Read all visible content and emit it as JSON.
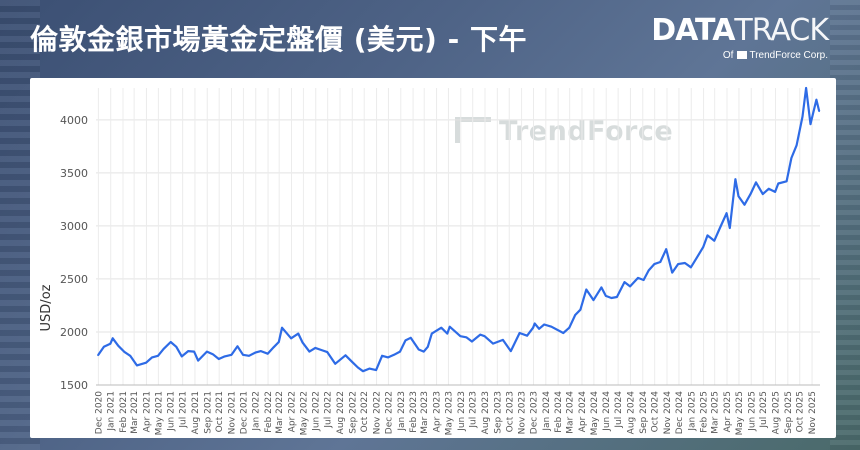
{
  "header": {
    "title": "倫敦金銀市場黃金定盤價 (美元) - 下午",
    "brand_bold": "DATA",
    "brand_light": "TRACK",
    "brand_sub_prefix": "Of",
    "brand_sub_name": "TrendForce Corp."
  },
  "watermark": "TrendForce",
  "chart_data": {
    "type": "line",
    "title": "倫敦金銀市場黃金定盤價 (美元) - 下午",
    "ylabel": "USD/oz",
    "xlabel": "",
    "ylim": [
      1500,
      4300
    ],
    "yticks": [
      1500,
      2000,
      2500,
      3000,
      3500,
      4000
    ],
    "grid": true,
    "line_color": "#2e6be6",
    "x_tick_labels": [
      "Dec 2020",
      "Jan 2021",
      "Feb 2021",
      "Mar 2021",
      "Apr 2021",
      "May 2021",
      "Jun 2021",
      "Jul 2021",
      "Aug 2021",
      "Sep 2021",
      "Oct 2021",
      "Nov 2021",
      "Dec 2021",
      "Jan 2022",
      "Feb 2022",
      "Mar 2022",
      "Apr 2022",
      "May 2022",
      "Jun 2022",
      "Jul 2022",
      "Aug 2022",
      "Sep 2022",
      "Oct 2022",
      "Nov 2022",
      "Dec 2022",
      "Jan 2023",
      "Feb 2023",
      "Mar 2023",
      "Apr 2023",
      "May 2023",
      "Jun 2023",
      "Jul 2023",
      "Aug 2023",
      "Sep 2023",
      "Oct 2023",
      "Nov 2023",
      "Dec 2023",
      "Jan 2024",
      "Feb 2024",
      "Mar 2024",
      "Apr 2024",
      "May 2024",
      "Jun 2024",
      "Jul 2024",
      "Aug 2024",
      "Sep 2024",
      "Oct 2024",
      "Nov 2024",
      "Dec 2024",
      "Jan 2025",
      "Feb 2025",
      "Mar 2025",
      "Apr 2025",
      "May 2025",
      "Jun 2025",
      "Jul 2025",
      "Aug 2025",
      "Sep 2025",
      "Oct 2025",
      "Nov 2025"
    ],
    "series": [
      {
        "points": [
          [
            "2020-11-30",
            1780
          ],
          [
            "2020-12-15",
            1860
          ],
          [
            "2020-12-31",
            1888
          ],
          [
            "2021-01-06",
            1940
          ],
          [
            "2021-01-20",
            1870
          ],
          [
            "2021-02-05",
            1810
          ],
          [
            "2021-02-19",
            1775
          ],
          [
            "2021-03-08",
            1685
          ],
          [
            "2021-03-31",
            1710
          ],
          [
            "2021-04-15",
            1760
          ],
          [
            "2021-04-30",
            1775
          ],
          [
            "2021-05-14",
            1840
          ],
          [
            "2021-06-01",
            1905
          ],
          [
            "2021-06-15",
            1860
          ],
          [
            "2021-06-29",
            1770
          ],
          [
            "2021-07-15",
            1820
          ],
          [
            "2021-07-30",
            1815
          ],
          [
            "2021-08-09",
            1730
          ],
          [
            "2021-08-31",
            1815
          ],
          [
            "2021-09-15",
            1790
          ],
          [
            "2021-09-30",
            1745
          ],
          [
            "2021-10-15",
            1770
          ],
          [
            "2021-11-01",
            1785
          ],
          [
            "2021-11-16",
            1865
          ],
          [
            "2021-11-30",
            1785
          ],
          [
            "2021-12-15",
            1775
          ],
          [
            "2021-12-31",
            1805
          ],
          [
            "2022-01-14",
            1820
          ],
          [
            "2022-01-31",
            1795
          ],
          [
            "2022-02-15",
            1855
          ],
          [
            "2022-02-28",
            1905
          ],
          [
            "2022-03-08",
            2040
          ],
          [
            "2022-03-31",
            1940
          ],
          [
            "2022-04-18",
            1985
          ],
          [
            "2022-04-29",
            1900
          ],
          [
            "2022-05-16",
            1815
          ],
          [
            "2022-05-31",
            1850
          ],
          [
            "2022-06-15",
            1830
          ],
          [
            "2022-06-30",
            1810
          ],
          [
            "2022-07-20",
            1700
          ],
          [
            "2022-08-15",
            1780
          ],
          [
            "2022-08-31",
            1720
          ],
          [
            "2022-09-15",
            1665
          ],
          [
            "2022-09-28",
            1630
          ],
          [
            "2022-10-14",
            1655
          ],
          [
            "2022-10-31",
            1640
          ],
          [
            "2022-11-15",
            1775
          ],
          [
            "2022-11-30",
            1760
          ],
          [
            "2022-12-15",
            1785
          ],
          [
            "2022-12-30",
            1815
          ],
          [
            "2023-01-13",
            1920
          ],
          [
            "2023-01-26",
            1945
          ],
          [
            "2023-02-15",
            1835
          ],
          [
            "2023-02-28",
            1815
          ],
          [
            "2023-03-10",
            1860
          ],
          [
            "2023-03-20",
            1985
          ],
          [
            "2023-04-13",
            2040
          ],
          [
            "2023-04-28",
            1985
          ],
          [
            "2023-05-04",
            2050
          ],
          [
            "2023-05-31",
            1960
          ],
          [
            "2023-06-15",
            1950
          ],
          [
            "2023-06-29",
            1910
          ],
          [
            "2023-07-20",
            1975
          ],
          [
            "2023-07-31",
            1960
          ],
          [
            "2023-08-21",
            1890
          ],
          [
            "2023-09-15",
            1925
          ],
          [
            "2023-10-05",
            1820
          ],
          [
            "2023-10-27",
            1990
          ],
          [
            "2023-11-15",
            1965
          ],
          [
            "2023-11-30",
            2040
          ],
          [
            "2023-12-04",
            2080
          ],
          [
            "2023-12-15",
            2030
          ],
          [
            "2023-12-28",
            2070
          ],
          [
            "2024-01-15",
            2050
          ],
          [
            "2024-02-14",
            1990
          ],
          [
            "2024-02-29",
            2040
          ],
          [
            "2024-03-15",
            2160
          ],
          [
            "2024-03-28",
            2210
          ],
          [
            "2024-04-12",
            2400
          ],
          [
            "2024-04-30",
            2300
          ],
          [
            "2024-05-20",
            2420
          ],
          [
            "2024-05-31",
            2340
          ],
          [
            "2024-06-14",
            2320
          ],
          [
            "2024-06-28",
            2330
          ],
          [
            "2024-07-17",
            2470
          ],
          [
            "2024-07-31",
            2430
          ],
          [
            "2024-08-20",
            2510
          ],
          [
            "2024-09-03",
            2490
          ],
          [
            "2024-09-16",
            2580
          ],
          [
            "2024-09-30",
            2640
          ],
          [
            "2024-10-15",
            2660
          ],
          [
            "2024-10-30",
            2780
          ],
          [
            "2024-11-14",
            2560
          ],
          [
            "2024-11-29",
            2640
          ],
          [
            "2024-12-16",
            2650
          ],
          [
            "2024-12-31",
            2610
          ],
          [
            "2025-01-15",
            2700
          ],
          [
            "2025-01-31",
            2800
          ],
          [
            "2025-02-11",
            2910
          ],
          [
            "2025-02-28",
            2860
          ],
          [
            "2025-03-14",
            2980
          ],
          [
            "2025-03-31",
            3120
          ],
          [
            "2025-04-08",
            2980
          ],
          [
            "2025-04-22",
            3440
          ],
          [
            "2025-04-30",
            3280
          ],
          [
            "2025-05-15",
            3200
          ],
          [
            "2025-05-30",
            3300
          ],
          [
            "2025-06-13",
            3410
          ],
          [
            "2025-06-30",
            3300
          ],
          [
            "2025-07-15",
            3350
          ],
          [
            "2025-07-31",
            3320
          ],
          [
            "2025-08-08",
            3400
          ],
          [
            "2025-08-29",
            3420
          ],
          [
            "2025-09-10",
            3640
          ],
          [
            "2025-09-23",
            3760
          ],
          [
            "2025-10-08",
            4030
          ],
          [
            "2025-10-17",
            4300
          ],
          [
            "2025-10-28",
            3960
          ],
          [
            "2025-11-03",
            4050
          ],
          [
            "2025-11-12",
            4190
          ],
          [
            "2025-11-19",
            4080
          ]
        ]
      }
    ]
  }
}
